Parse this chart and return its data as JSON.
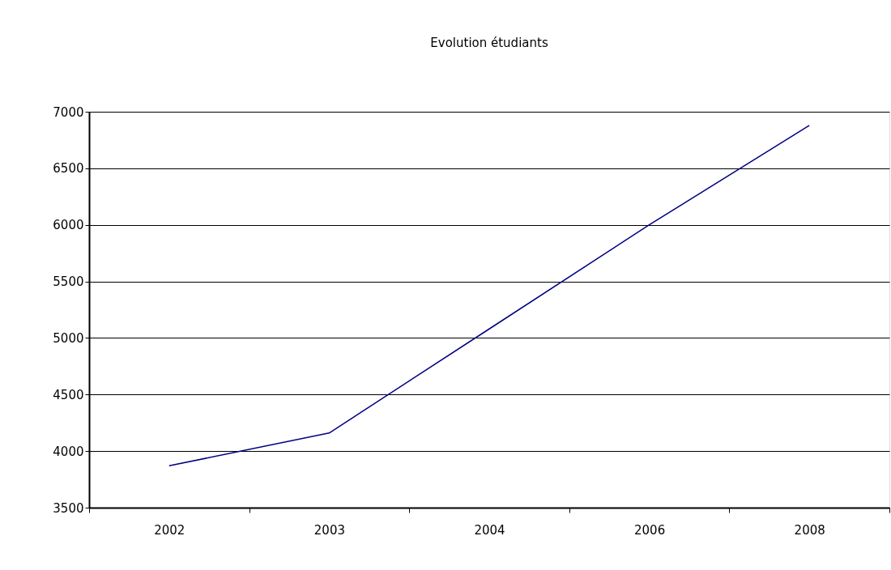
{
  "chart_data": {
    "type": "line",
    "title": "Evolution étudiants",
    "categories": [
      "2002",
      "2003",
      "2004",
      "2006",
      "2008"
    ],
    "series": [
      {
        "color": "#000080",
        "values": [
          3870,
          4160,
          5080,
          6000,
          6880
        ]
      }
    ],
    "ylim": [
      3500,
      7000
    ],
    "yticks": [
      3500,
      4000,
      4500,
      5000,
      5500,
      6000,
      6500,
      7000
    ],
    "grid": "y",
    "legend": false
  }
}
